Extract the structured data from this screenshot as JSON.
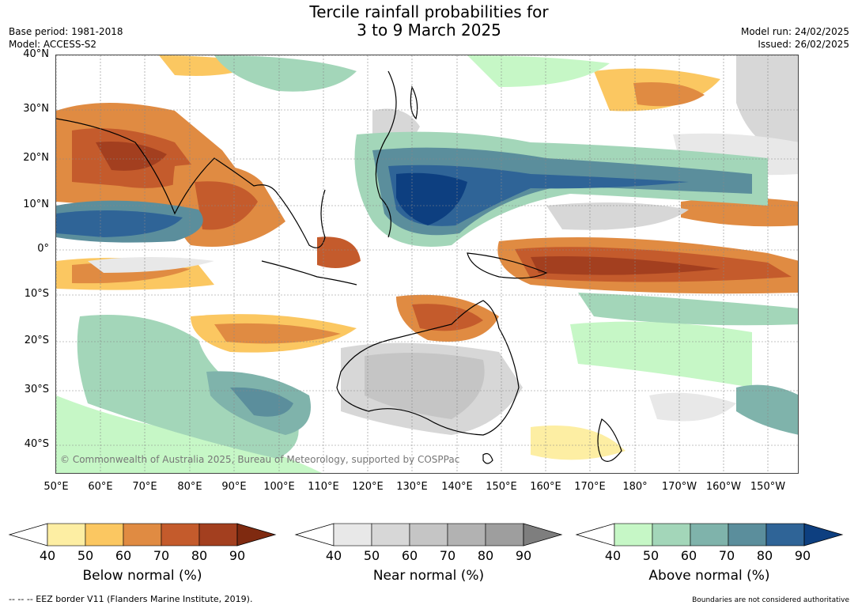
{
  "title_line1": "Tercile rainfall probabilities for",
  "title_line2": "3 to 9 March 2025",
  "base_period": "Base period: 1981-2018",
  "model": "Model: ACCESS-S2",
  "model_run": "Model run: 24/02/2025",
  "issued": "Issued: 26/02/2025",
  "credit": "© Commonwealth of Australia 2025, Bureau of Meteorology, supported by COSPPac",
  "lat_labels": [
    "40°N",
    "30°N",
    "20°N",
    "10°N",
    "0°",
    "10°S",
    "20°S",
    "30°S",
    "40°S"
  ],
  "lon_labels": [
    "50°E",
    "60°E",
    "70°E",
    "80°E",
    "90°E",
    "100°E",
    "110°E",
    "120°E",
    "130°E",
    "140°E",
    "150°E",
    "160°E",
    "170°E",
    "180°",
    "170°W",
    "160°W",
    "150°W"
  ],
  "legends": [
    {
      "title": "Below normal (%)",
      "ticks": [
        "40",
        "50",
        "60",
        "70",
        "80",
        "90"
      ],
      "colors": [
        "#ffffff",
        "#fdeea3",
        "#fbc761",
        "#e08b42",
        "#c45b2c",
        "#a33f1f",
        "#7f2a10"
      ]
    },
    {
      "title": "Near normal (%)",
      "ticks": [
        "40",
        "50",
        "60",
        "70",
        "80",
        "90"
      ],
      "colors": [
        "#ffffff",
        "#e8e8e8",
        "#d7d7d7",
        "#c5c5c5",
        "#b2b2b2",
        "#9e9e9e",
        "#7e7e7e"
      ]
    },
    {
      "title": "Above normal (%)",
      "ticks": [
        "40",
        "50",
        "60",
        "70",
        "80",
        "90"
      ],
      "colors": [
        "#ffffff",
        "#c6f7c6",
        "#a3d6b9",
        "#7fb3ab",
        "#5b8e9c",
        "#2f6497",
        "#0d3f80"
      ]
    }
  ],
  "footer_left": "--  --  -- EEZ border V11 (Flanders Marine Institute, 2019).",
  "footer_right": "Boundaries are not considered authoritative"
}
